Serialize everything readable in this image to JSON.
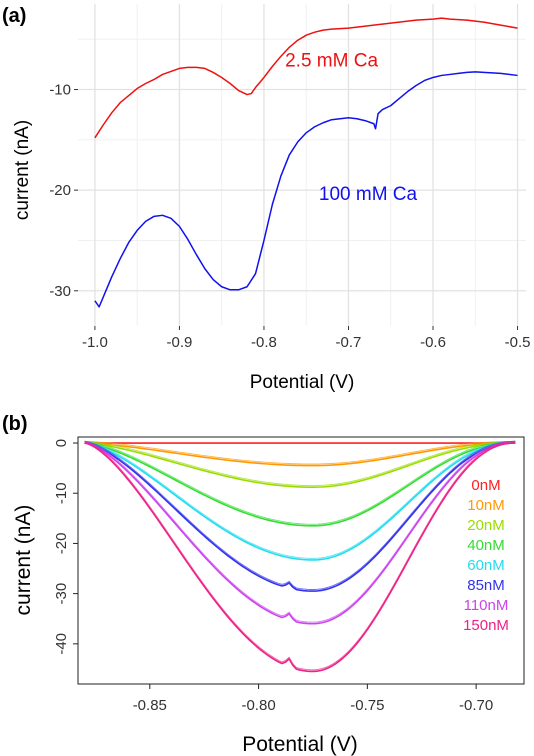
{
  "chart_data": [
    {
      "panel_label": "(a)",
      "type": "line",
      "xlabel": "Potential (V)",
      "ylabel": "current (nA)",
      "xlim": [
        -1.02,
        -0.49
      ],
      "ylim": [
        -33.5,
        -1.5
      ],
      "x_ticks": [
        -1.0,
        -0.9,
        -0.8,
        -0.7,
        -0.6,
        -0.5
      ],
      "x_tick_labels": [
        "-1.0",
        "-0.9",
        "-0.8",
        "-0.7",
        "-0.6",
        "-0.5"
      ],
      "y_ticks": [
        -10,
        -20,
        -30
      ],
      "y_tick_labels": [
        "-10",
        "-20",
        "-30"
      ],
      "grid": true,
      "series": [
        {
          "name": "2.5 mM Ca",
          "color": "#ee1111",
          "x": [
            -1.0,
            -0.99,
            -0.98,
            -0.97,
            -0.96,
            -0.95,
            -0.94,
            -0.93,
            -0.92,
            -0.91,
            -0.9,
            -0.89,
            -0.88,
            -0.87,
            -0.86,
            -0.85,
            -0.84,
            -0.83,
            -0.82,
            -0.815,
            -0.81,
            -0.8,
            -0.79,
            -0.78,
            -0.77,
            -0.76,
            -0.75,
            -0.74,
            -0.73,
            -0.72,
            -0.7,
            -0.68,
            -0.66,
            -0.64,
            -0.62,
            -0.6,
            -0.59,
            -0.58,
            -0.56,
            -0.54,
            -0.52,
            -0.5
          ],
          "y": [
            -14.8,
            -13.5,
            -12.3,
            -11.3,
            -10.6,
            -9.9,
            -9.4,
            -9.0,
            -8.5,
            -8.2,
            -7.9,
            -7.8,
            -7.8,
            -7.9,
            -8.3,
            -8.8,
            -9.4,
            -10.1,
            -10.5,
            -10.4,
            -9.8,
            -8.8,
            -7.7,
            -6.7,
            -5.8,
            -5.1,
            -4.6,
            -4.3,
            -4.1,
            -4.0,
            -3.9,
            -3.7,
            -3.5,
            -3.3,
            -3.1,
            -3.0,
            -2.9,
            -3.0,
            -3.1,
            -3.3,
            -3.6,
            -3.9
          ]
        },
        {
          "name": "100 mM Ca",
          "color": "#1111ee",
          "x": [
            -1.0,
            -0.995,
            -0.99,
            -0.98,
            -0.97,
            -0.96,
            -0.95,
            -0.94,
            -0.93,
            -0.92,
            -0.91,
            -0.9,
            -0.89,
            -0.88,
            -0.87,
            -0.86,
            -0.85,
            -0.84,
            -0.83,
            -0.82,
            -0.81,
            -0.8,
            -0.79,
            -0.78,
            -0.77,
            -0.76,
            -0.75,
            -0.74,
            -0.73,
            -0.72,
            -0.71,
            -0.7,
            -0.69,
            -0.68,
            -0.67,
            -0.668,
            -0.665,
            -0.66,
            -0.65,
            -0.64,
            -0.63,
            -0.62,
            -0.61,
            -0.6,
            -0.59,
            -0.58,
            -0.57,
            -0.56,
            -0.55,
            -0.54,
            -0.52,
            -0.5
          ],
          "y": [
            -31.0,
            -31.6,
            -30.6,
            -28.6,
            -26.8,
            -25.2,
            -24.0,
            -23.1,
            -22.6,
            -22.5,
            -22.8,
            -23.6,
            -24.9,
            -26.4,
            -27.8,
            -28.9,
            -29.6,
            -29.9,
            -29.9,
            -29.6,
            -28.3,
            -25.0,
            -21.4,
            -18.6,
            -16.5,
            -15.2,
            -14.3,
            -13.7,
            -13.3,
            -13.0,
            -12.9,
            -12.8,
            -12.9,
            -13.1,
            -13.4,
            -13.9,
            -12.4,
            -12.0,
            -11.6,
            -10.9,
            -10.2,
            -9.6,
            -9.1,
            -8.8,
            -8.6,
            -8.5,
            -8.4,
            -8.3,
            -8.25,
            -8.3,
            -8.4,
            -8.6
          ]
        }
      ],
      "annotations": [
        {
          "text": "2.5 mM Ca",
          "color": "#ee1111",
          "x": -0.775,
          "y": -7.0
        },
        {
          "text": "100 mM Ca",
          "color": "#1111ee",
          "x": -0.735,
          "y": -20.3
        }
      ]
    },
    {
      "panel_label": "(b)",
      "type": "line",
      "xlabel": "Potential (V)",
      "ylabel": "current (nA)",
      "xlim": [
        -0.883,
        -0.678
      ],
      "ylim": [
        -48,
        1.2
      ],
      "x_ticks": [
        -0.85,
        -0.8,
        -0.75,
        -0.7
      ],
      "x_tick_labels": [
        "-0.85",
        "-0.80",
        "-0.75",
        "-0.70"
      ],
      "y_ticks": [
        0,
        -10,
        -20,
        -30,
        -40
      ],
      "y_tick_labels": [
        "0",
        "-10",
        "-20",
        "-30",
        "-40"
      ],
      "grid": false,
      "x_range": [
        -0.88,
        -0.682
      ],
      "trough_x": -0.775,
      "series": [
        {
          "name": "0nM",
          "color": "#ff2020",
          "depth": 0
        },
        {
          "name": "10nM",
          "color": "#ff9900",
          "depth": -4.5
        },
        {
          "name": "20nM",
          "color": "#99dd00",
          "depth": -8.8
        },
        {
          "name": "40nM",
          "color": "#33dd33",
          "depth": -16.5
        },
        {
          "name": "60nM",
          "color": "#22ddee",
          "depth": -23.3
        },
        {
          "name": "85nM",
          "color": "#3333ee",
          "depth": -29.5
        },
        {
          "name": "110nM",
          "color": "#cc44ee",
          "depth": -36.0
        },
        {
          "name": "150nM",
          "color": "#ee2288",
          "depth": -45.5
        }
      ],
      "legend_position": "right"
    }
  ]
}
